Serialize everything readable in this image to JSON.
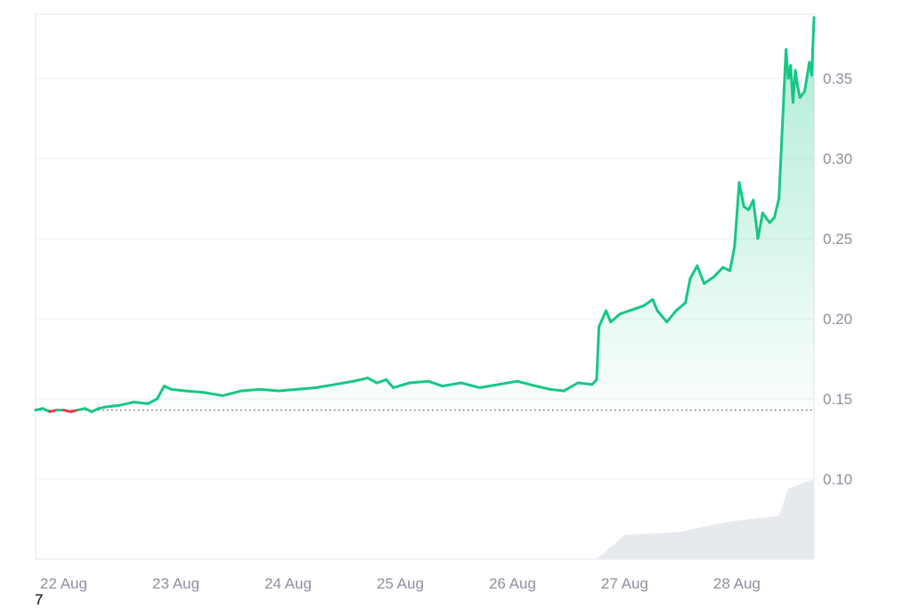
{
  "chart_data": {
    "type": "line",
    "x_ticks": [
      "22 Aug",
      "23 Aug",
      "24 Aug",
      "25 Aug",
      "26 Aug",
      "27 Aug",
      "28 Aug"
    ],
    "y_ticks": [
      "0.35",
      "0.30",
      "0.25",
      "0.20",
      "0.15",
      "0.10"
    ],
    "ylim": [
      0.05,
      0.39
    ],
    "xlim": [
      "2024-08-21T18:00",
      "2024-08-28T16:30"
    ],
    "baseline": 0.143,
    "grid": true,
    "colors": {
      "up": "#16c784",
      "down": "#ea3943",
      "grid": "#eceef1",
      "volume": "#e6e9ee",
      "baseline": "#555b66"
    },
    "series": [
      {
        "values": [
          [
            "2024-08-21T18:00",
            0.143
          ],
          [
            "2024-08-21T19:30",
            0.144
          ],
          [
            "2024-08-21T21:00",
            0.142
          ],
          [
            "2024-08-21T22:30",
            0.143
          ],
          [
            "2024-08-22T00:00",
            0.143
          ],
          [
            "2024-08-22T01:30",
            0.142
          ],
          [
            "2024-08-22T03:00",
            0.143
          ],
          [
            "2024-08-22T04:30",
            0.144
          ],
          [
            "2024-08-22T06:00",
            0.142
          ],
          [
            "2024-08-22T07:30",
            0.144
          ],
          [
            "2024-08-22T09:00",
            0.145
          ],
          [
            "2024-08-22T12:00",
            0.146
          ],
          [
            "2024-08-22T15:00",
            0.148
          ],
          [
            "2024-08-22T18:00",
            0.147
          ],
          [
            "2024-08-22T20:00",
            0.15
          ],
          [
            "2024-08-22T21:30",
            0.158
          ],
          [
            "2024-08-22T23:00",
            0.156
          ],
          [
            "2024-08-23T02:00",
            0.155
          ],
          [
            "2024-08-23T06:00",
            0.154
          ],
          [
            "2024-08-23T10:00",
            0.152
          ],
          [
            "2024-08-23T14:00",
            0.155
          ],
          [
            "2024-08-23T18:00",
            0.156
          ],
          [
            "2024-08-23T22:00",
            0.155
          ],
          [
            "2024-08-24T02:00",
            0.156
          ],
          [
            "2024-08-24T06:00",
            0.157
          ],
          [
            "2024-08-24T10:00",
            0.159
          ],
          [
            "2024-08-24T14:00",
            0.161
          ],
          [
            "2024-08-24T17:00",
            0.163
          ],
          [
            "2024-08-24T19:00",
            0.16
          ],
          [
            "2024-08-24T21:00",
            0.162
          ],
          [
            "2024-08-24T22:30",
            0.157
          ],
          [
            "2024-08-25T02:00",
            0.16
          ],
          [
            "2024-08-25T06:00",
            0.161
          ],
          [
            "2024-08-25T09:00",
            0.158
          ],
          [
            "2024-08-25T13:00",
            0.16
          ],
          [
            "2024-08-25T17:00",
            0.157
          ],
          [
            "2024-08-25T21:00",
            0.159
          ],
          [
            "2024-08-26T01:00",
            0.161
          ],
          [
            "2024-08-26T05:00",
            0.158
          ],
          [
            "2024-08-26T08:00",
            0.156
          ],
          [
            "2024-08-26T11:00",
            0.155
          ],
          [
            "2024-08-26T14:00",
            0.16
          ],
          [
            "2024-08-26T17:00",
            0.159
          ],
          [
            "2024-08-26T18:00",
            0.162
          ],
          [
            "2024-08-26T18:30",
            0.195
          ],
          [
            "2024-08-26T20:00",
            0.205
          ],
          [
            "2024-08-26T21:00",
            0.198
          ],
          [
            "2024-08-26T23:00",
            0.203
          ],
          [
            "2024-08-27T02:00",
            0.206
          ],
          [
            "2024-08-27T04:00",
            0.208
          ],
          [
            "2024-08-27T06:00",
            0.212
          ],
          [
            "2024-08-27T07:00",
            0.205
          ],
          [
            "2024-08-27T09:00",
            0.198
          ],
          [
            "2024-08-27T11:00",
            0.205
          ],
          [
            "2024-08-27T13:00",
            0.21
          ],
          [
            "2024-08-27T14:00",
            0.225
          ],
          [
            "2024-08-27T15:30",
            0.233
          ],
          [
            "2024-08-27T17:00",
            0.222
          ],
          [
            "2024-08-27T19:00",
            0.226
          ],
          [
            "2024-08-27T21:00",
            0.232
          ],
          [
            "2024-08-27T22:30",
            0.23
          ],
          [
            "2024-08-27T23:30",
            0.245
          ],
          [
            "2024-08-28T00:30",
            0.285
          ],
          [
            "2024-08-28T01:30",
            0.27
          ],
          [
            "2024-08-28T02:30",
            0.268
          ],
          [
            "2024-08-28T03:30",
            0.274
          ],
          [
            "2024-08-28T04:30",
            0.25
          ],
          [
            "2024-08-28T05:30",
            0.266
          ],
          [
            "2024-08-28T07:00",
            0.26
          ],
          [
            "2024-08-28T08:00",
            0.263
          ],
          [
            "2024-08-28T09:00",
            0.275
          ],
          [
            "2024-08-28T10:30",
            0.368
          ],
          [
            "2024-08-28T11:00",
            0.35
          ],
          [
            "2024-08-28T11:30",
            0.358
          ],
          [
            "2024-08-28T12:00",
            0.335
          ],
          [
            "2024-08-28T12:30",
            0.355
          ],
          [
            "2024-08-28T13:00",
            0.345
          ],
          [
            "2024-08-28T13:30",
            0.338
          ],
          [
            "2024-08-28T14:30",
            0.342
          ],
          [
            "2024-08-28T15:30",
            0.36
          ],
          [
            "2024-08-28T16:00",
            0.352
          ],
          [
            "2024-08-28T16:30",
            0.388
          ]
        ]
      }
    ],
    "volume": [
      [
        "2024-08-26T18:00",
        0.0
      ],
      [
        "2024-08-27T00:00",
        0.3
      ],
      [
        "2024-08-27T12:00",
        0.34
      ],
      [
        "2024-08-27T18:00",
        0.42
      ],
      [
        "2024-08-28T00:00",
        0.48
      ],
      [
        "2024-08-28T06:00",
        0.52
      ],
      [
        "2024-08-28T09:00",
        0.54
      ],
      [
        "2024-08-28T11:00",
        0.88
      ],
      [
        "2024-08-28T16:30",
        1.0
      ]
    ]
  },
  "footer": {
    "page_number": "7"
  }
}
